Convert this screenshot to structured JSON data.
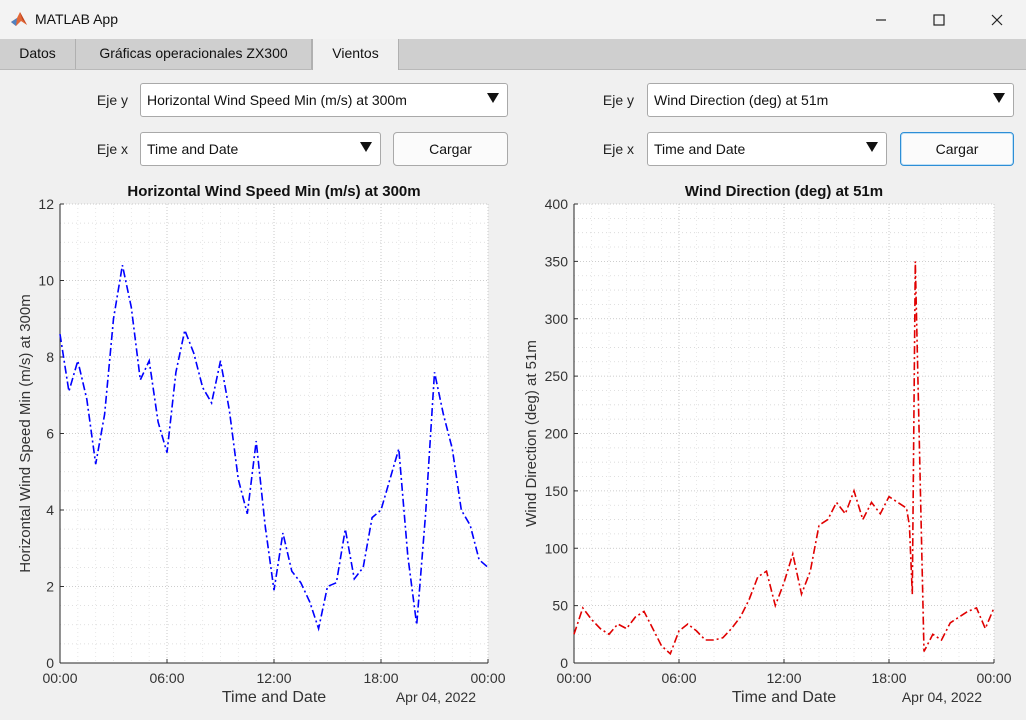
{
  "window": {
    "title": "MATLAB App"
  },
  "tabs": [
    {
      "label": "Datos"
    },
    {
      "label": "Gráficas operacionales ZX300"
    },
    {
      "label": "Vientos",
      "active": true
    }
  ],
  "left_panel": {
    "y_label": "Eje y",
    "y_value": "Horizontal Wind Speed Min (m/s) at 300m",
    "x_label": "Eje x",
    "x_value": "Time and Date",
    "load_button": "Cargar"
  },
  "right_panel": {
    "y_label": "Eje y",
    "y_value": "Wind Direction (deg) at 51m",
    "x_label": "Eje x",
    "x_value": "Time and Date",
    "load_button": "Cargar"
  },
  "chart_data": [
    {
      "type": "line",
      "title": "Horizontal Wind Speed Min (m/s) at 300m",
      "xlabel": "Time and Date",
      "ylabel": "Horizontal Wind Speed Min (m/s) at 300m",
      "date_label": "Apr 04, 2022",
      "x_ticks": [
        "00:00",
        "06:00",
        "12:00",
        "18:00",
        "00:00"
      ],
      "y_ticks": [
        "0",
        "2",
        "4",
        "6",
        "8",
        "10",
        "12"
      ],
      "ylim": [
        0,
        12
      ],
      "grid": true,
      "line_style": "dash-dot",
      "color": "#0000ff",
      "series": [
        {
          "x": [
            "00:00",
            "00:30",
            "01:00",
            "01:30",
            "02:00",
            "02:30",
            "03:00",
            "03:30",
            "04:00",
            "04:30",
            "05:00",
            "05:30",
            "06:00",
            "06:30",
            "07:00",
            "07:30",
            "08:00",
            "08:30",
            "09:00",
            "09:30",
            "10:00",
            "10:30",
            "11:00",
            "11:30",
            "12:00",
            "12:30",
            "13:00",
            "13:30",
            "14:00",
            "14:30",
            "15:00",
            "15:30",
            "16:00",
            "16:30",
            "17:00",
            "17:30",
            "18:00",
            "18:30",
            "19:00",
            "19:30",
            "20:00",
            "20:30",
            "21:00",
            "21:30",
            "22:00",
            "22:30",
            "23:00",
            "23:30",
            "24:00"
          ],
          "y": [
            8.6,
            7.1,
            7.9,
            6.9,
            5.2,
            6.5,
            9.0,
            10.4,
            9.3,
            7.4,
            7.9,
            6.3,
            5.5,
            7.6,
            8.7,
            8.1,
            7.2,
            6.8,
            7.9,
            6.6,
            4.8,
            3.9,
            5.8,
            3.6,
            1.9,
            3.4,
            2.4,
            2.1,
            1.6,
            0.9,
            2.0,
            2.1,
            3.5,
            2.2,
            2.5,
            3.8,
            4.0,
            4.8,
            5.6,
            2.8,
            1.0,
            3.9,
            7.6,
            6.5,
            5.6,
            4.0,
            3.6,
            2.7,
            2.5
          ]
        }
      ]
    },
    {
      "type": "line",
      "title": "Wind Direction (deg) at 51m",
      "xlabel": "Time and Date",
      "ylabel": "Wind Direction (deg) at 51m",
      "date_label": "Apr 04, 2022",
      "x_ticks": [
        "00:00",
        "06:00",
        "12:00",
        "18:00",
        "00:00"
      ],
      "y_ticks": [
        "0",
        "50",
        "100",
        "150",
        "200",
        "250",
        "300",
        "350",
        "400"
      ],
      "ylim": [
        0,
        400
      ],
      "grid": true,
      "line_style": "dash-dot",
      "color": "#e00000",
      "series": [
        {
          "x": [
            "00:00",
            "00:30",
            "01:00",
            "01:30",
            "02:00",
            "02:30",
            "03:00",
            "03:30",
            "04:00",
            "04:30",
            "05:00",
            "05:30",
            "06:00",
            "06:30",
            "07:00",
            "07:30",
            "08:00",
            "08:30",
            "09:00",
            "09:30",
            "10:00",
            "10:30",
            "11:00",
            "11:30",
            "12:00",
            "12:30",
            "13:00",
            "13:30",
            "14:00",
            "14:30",
            "15:00",
            "15:30",
            "16:00",
            "16:30",
            "17:00",
            "17:30",
            "18:00",
            "18:30",
            "19:00",
            "19:10",
            "19:20",
            "19:30",
            "20:00",
            "20:30",
            "21:00",
            "21:30",
            "22:00",
            "22:30",
            "23:00",
            "23:30",
            "24:00"
          ],
          "y": [
            25,
            48,
            38,
            30,
            25,
            34,
            30,
            40,
            45,
            30,
            15,
            8,
            28,
            34,
            28,
            20,
            20,
            22,
            30,
            40,
            55,
            75,
            80,
            50,
            70,
            95,
            60,
            80,
            120,
            125,
            140,
            130,
            150,
            125,
            140,
            130,
            145,
            140,
            135,
            120,
            60,
            350,
            10,
            25,
            20,
            35,
            40,
            45,
            48,
            30,
            48
          ]
        }
      ]
    }
  ]
}
